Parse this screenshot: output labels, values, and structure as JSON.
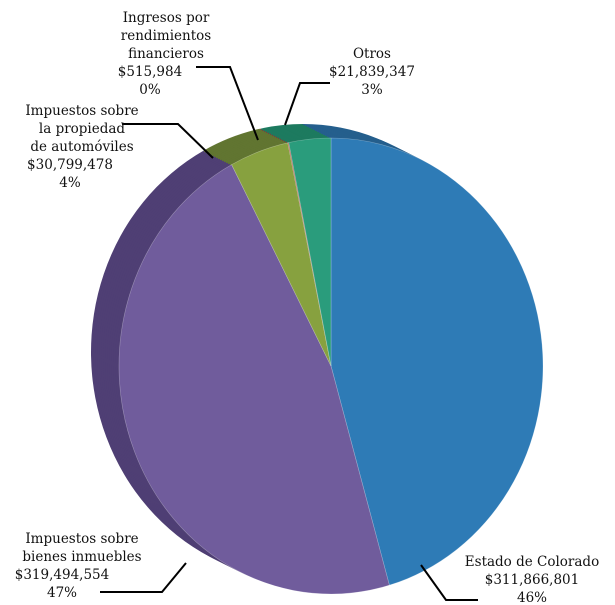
{
  "chart_data": {
    "type": "pie",
    "title": "",
    "slices": [
      {
        "key": "estado",
        "label_lines": [
          "Estado de Colorado"
        ],
        "amount": "$311,866,801",
        "percent": "46%",
        "value": 311866801,
        "color": "#2e7bb6",
        "side_color": "#255f8d"
      },
      {
        "key": "inmuebles",
        "label_lines": [
          "Impuestos sobre",
          "bienes inmuebles"
        ],
        "amount": "$319,494,554",
        "percent": "47%",
        "value": 319494554,
        "color": "#705c9c",
        "side_color": "#4f3f74"
      },
      {
        "key": "automoviles",
        "label_lines": [
          "Impuestos sobre",
          "la propiedad",
          "de automóviles"
        ],
        "amount": "$30,799,478",
        "percent": "4%",
        "value": 30799478,
        "color": "#87a13f",
        "side_color": "#617531"
      },
      {
        "key": "ingresos",
        "label_lines": [
          "Ingresos por",
          "rendimientos",
          "financieros"
        ],
        "amount": "$515,984",
        "percent": "0%",
        "value": 515984,
        "color": "#b8524c",
        "side_color": "#8a3a36"
      },
      {
        "key": "otros",
        "label_lines": [
          "Otros"
        ],
        "amount": "$21,839,347",
        "percent": "3%",
        "value": 21839347,
        "color": "#2a9c7c",
        "side_color": "#1d7a5f"
      }
    ]
  }
}
